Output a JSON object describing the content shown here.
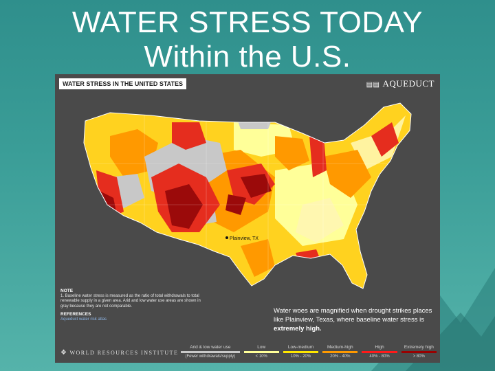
{
  "slide": {
    "title_line1": "WATER STRESS TODAY",
    "title_line2": "Within the U.S."
  },
  "map": {
    "header": "WATER STRESS IN THE UNITED STATES",
    "brand": "AQUEDUCT",
    "brand_icon": "aqueduct-logo-icon",
    "city_label": "Plainview, TX",
    "note_title": "NOTE",
    "note_text": "1. Baseline water stress is measured as the ratio of total withdrawals to total renewable supply in a given area. Arid and low water use areas are shown in gray because they are not comparable.",
    "references_title": "REFERENCES",
    "references_text": "Aqueduct water risk atlas",
    "caption_text": "Water woes are magnified when drought strikes places like Plainview, Texas, where baseline water stress is ",
    "caption_emphasis": "extremely high.",
    "org_name": "WORLD RESOURCES INSTITUTE",
    "org_icon": "wri-logo-icon"
  },
  "legend": [
    {
      "label": "Arid & low water use",
      "range": "(Fewer withdrawals/supply)",
      "color": "#c8c8c8"
    },
    {
      "label": "Low",
      "range": "< 10%",
      "color": "#ffff99"
    },
    {
      "label": "Low-medium",
      "range": "10% - 20%",
      "color": "#ffe600"
    },
    {
      "label": "Medium-high",
      "range": "20% - 40%",
      "color": "#ff9900"
    },
    {
      "label": "High",
      "range": "40% - 80%",
      "color": "#ff1a1a"
    },
    {
      "label": "Extremely high",
      "range": "> 80%",
      "color": "#990000"
    }
  ],
  "colors": {
    "background": "#3a9d97",
    "panel": "#4a4a4a",
    "arid": "#c8c8c8",
    "low": "#ffff99",
    "low_medium": "#ffe600",
    "medium_high": "#ff9900",
    "high": "#e52d1e",
    "extreme": "#9b0a0a"
  }
}
